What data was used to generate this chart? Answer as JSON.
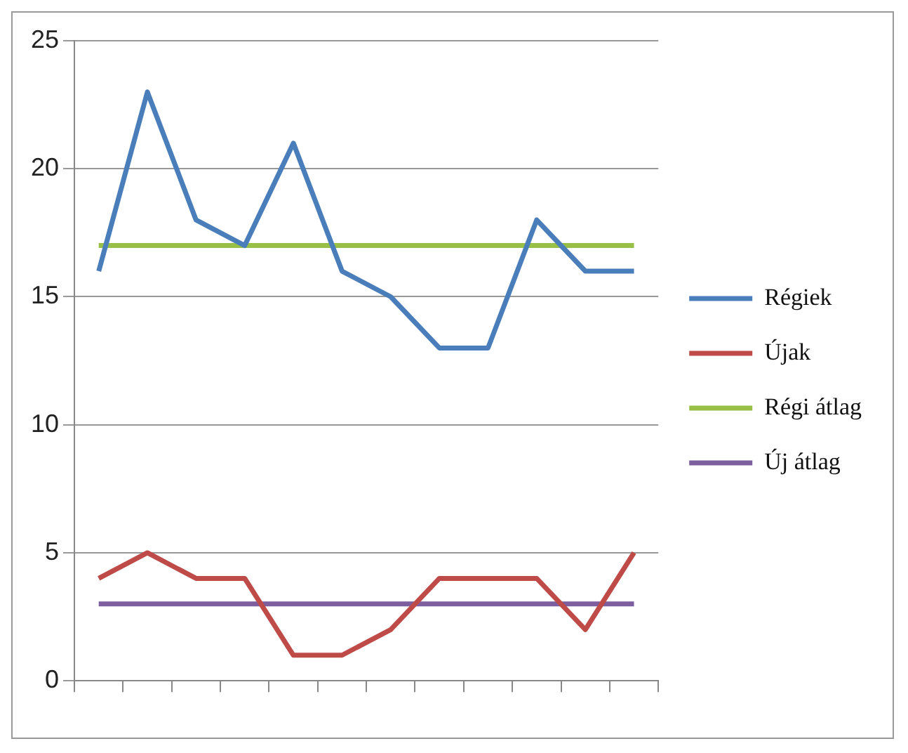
{
  "chart_data": {
    "type": "line",
    "categories": [
      null,
      null,
      null,
      null,
      null,
      null,
      null,
      null,
      null,
      null,
      null,
      null
    ],
    "series": [
      {
        "name": "Régiek",
        "color": "#4a7ebb",
        "values": [
          16,
          23,
          18,
          17,
          21,
          16,
          15,
          13,
          13,
          18,
          16,
          16
        ]
      },
      {
        "name": "Újak",
        "color": "#be4b48",
        "values": [
          4,
          5,
          4,
          4,
          1,
          1,
          2,
          4,
          4,
          4,
          2,
          5
        ]
      },
      {
        "name": "Régi átlag",
        "color": "#98c047",
        "values": [
          17,
          17,
          17,
          17,
          17,
          17,
          17,
          17,
          17,
          17,
          17,
          17
        ]
      },
      {
        "name": "Új átlag",
        "color": "#7d5fa0",
        "values": [
          3,
          3,
          3,
          3,
          3,
          3,
          3,
          3,
          3,
          3,
          3,
          3
        ]
      }
    ],
    "ylim": [
      0,
      25
    ],
    "yticks": [
      0,
      5,
      10,
      15,
      20,
      25
    ],
    "grid": "y",
    "legend": "right",
    "marker": "none"
  }
}
